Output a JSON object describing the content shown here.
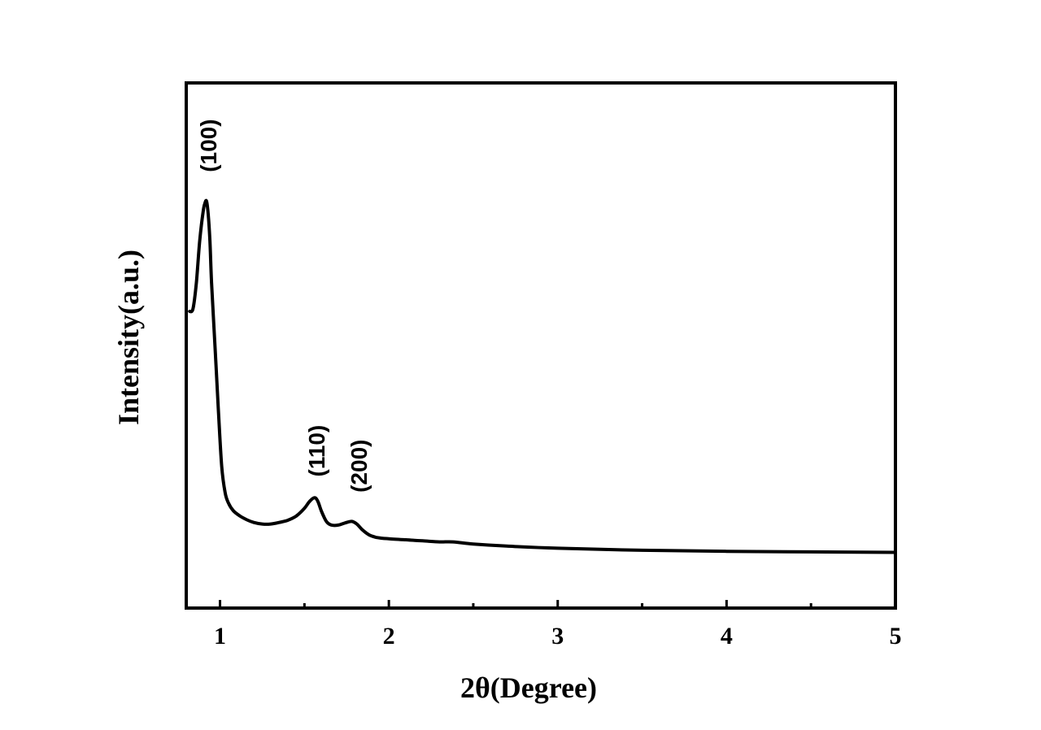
{
  "chart_data": {
    "type": "line",
    "title": "",
    "xlabel": "2θ(Degree)",
    "ylabel": "Intensity(a.u.)",
    "xlim": [
      0.8,
      5.0
    ],
    "ylim": [
      0,
      100
    ],
    "y_ticks_shown": false,
    "grid": false,
    "legend": "none",
    "x_major_ticks": [
      1,
      2,
      3,
      4,
      5
    ],
    "x_minor_ticks": [
      1.5,
      2.5,
      3.5,
      4.5
    ],
    "x_tick_labels": [
      "1",
      "2",
      "3",
      "4",
      "5"
    ],
    "series": [
      {
        "color": "#000000",
        "x": [
          0.82,
          0.84,
          0.86,
          0.88,
          0.9,
          0.91,
          0.92,
          0.93,
          0.94,
          0.95,
          0.97,
          0.99,
          1.01,
          1.03,
          1.05,
          1.08,
          1.12,
          1.16,
          1.2,
          1.25,
          1.3,
          1.35,
          1.4,
          1.45,
          1.5,
          1.53,
          1.56,
          1.58,
          1.6,
          1.63,
          1.66,
          1.7,
          1.74,
          1.78,
          1.81,
          1.84,
          1.88,
          1.92,
          1.96,
          2.0,
          2.1,
          2.2,
          2.3,
          2.38,
          2.5,
          2.7,
          3.0,
          3.5,
          4.0,
          4.5,
          5.0
        ],
        "y": [
          56.5,
          57.0,
          62.0,
          70.0,
          75.5,
          77.0,
          77.5,
          75.0,
          70.0,
          62.0,
          50.0,
          38.0,
          27.0,
          22.0,
          20.0,
          18.5,
          17.5,
          16.8,
          16.3,
          16.0,
          16.0,
          16.3,
          16.7,
          17.5,
          19.0,
          20.3,
          21.0,
          20.3,
          18.5,
          16.5,
          15.8,
          15.8,
          16.2,
          16.5,
          16.0,
          15.0,
          14.0,
          13.5,
          13.3,
          13.2,
          13.0,
          12.8,
          12.6,
          12.6,
          12.2,
          11.8,
          11.4,
          11.0,
          10.8,
          10.7,
          10.6
        ]
      }
    ],
    "annotations": [
      {
        "text": "(100)",
        "x": 0.93,
        "y": 83
      },
      {
        "text": "(110)",
        "x": 1.57,
        "y": 25
      },
      {
        "text": "(200)",
        "x": 1.82,
        "y": 22
      }
    ]
  }
}
